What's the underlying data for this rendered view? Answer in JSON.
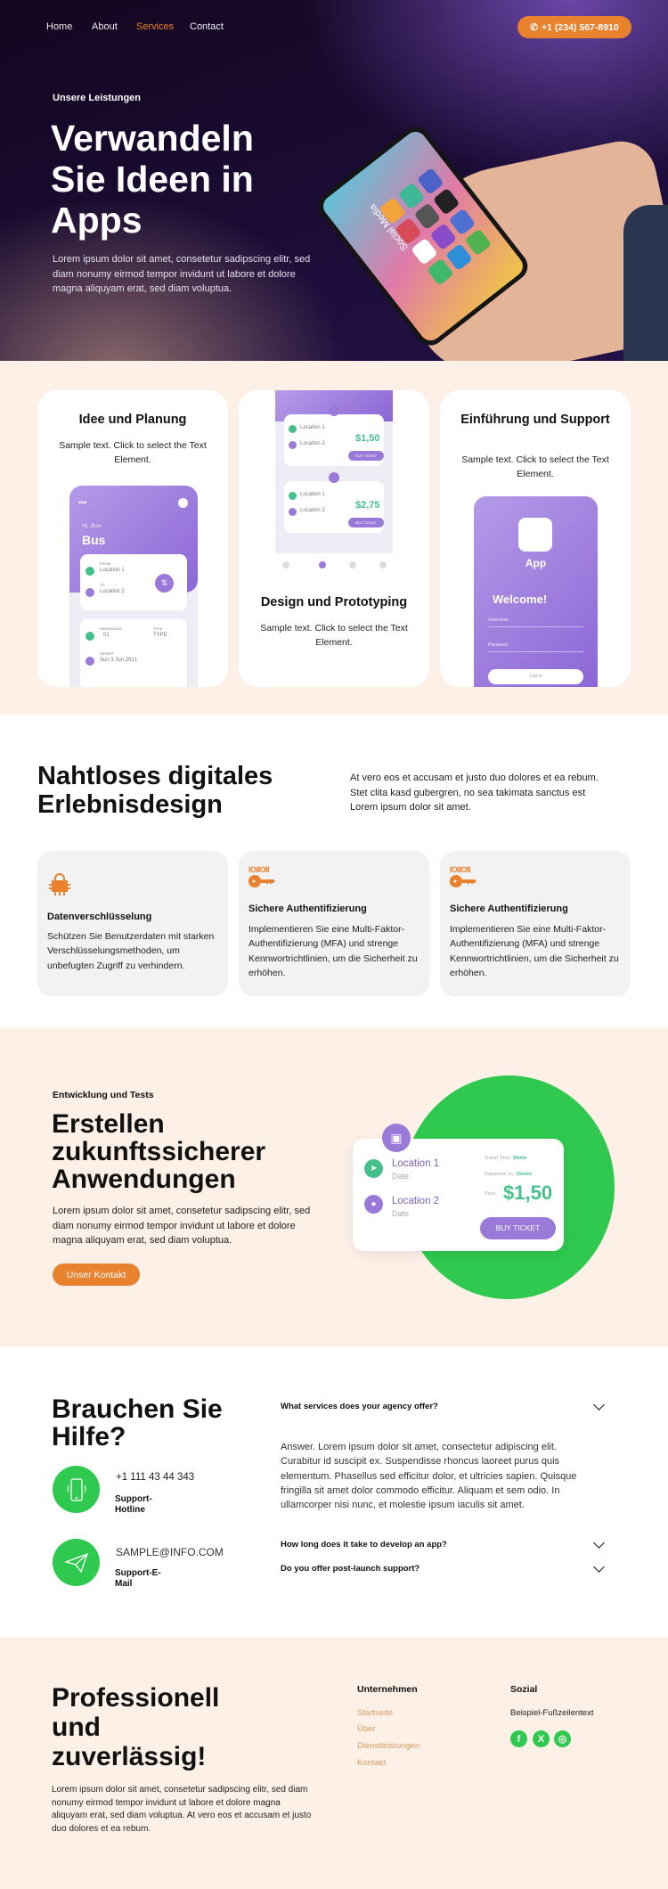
{
  "nav": {
    "items": [
      "Home",
      "About",
      "Services",
      "Contact"
    ],
    "active": "Services",
    "phone": "+1 (234) 567-8910"
  },
  "hero": {
    "kicker": "Unsere Leistungen",
    "title_lines": [
      "Verwandeln",
      "Sie Ideen in",
      "Apps"
    ],
    "text": "Lorem ipsum dolor sit amet, consetetur sadipscing elitr, sed diam nonumy eirmod tempor invidunt ut labore et dolore magna aliquyam erat, sed diam voluptua.",
    "phone_screen_label": "Social Media"
  },
  "process": {
    "cards": [
      {
        "title": "Idee und Planung",
        "text": "Sample text. Click to select the Text Element."
      },
      {
        "title": "Design und Prototyping",
        "text": "Sample text. Click to select the Text Element."
      },
      {
        "title": "Einführung und Support",
        "text": "Sample text. Click to select the Text Element."
      }
    ],
    "mock_bus": {
      "greeting": "Hi, Jhon",
      "title": "Bus",
      "from_label": "FROM",
      "from": "Location 1",
      "to_label": "TO",
      "to": "Location 2",
      "passenger_label": "PASSENGER",
      "passenger": "01",
      "type_label": "TYPE",
      "type": "TYPE",
      "depart_label": "DEPART",
      "depart": "Sun 3 Jun 2021"
    },
    "mock_tickets": [
      {
        "loc1": "Location 1",
        "loc2": "Location 2",
        "price": "$1,50",
        "button": "BUY TICKET"
      },
      {
        "loc1": "Location 1",
        "loc2": "Location 2",
        "price": "$2,75",
        "button": "BUY TICKET"
      }
    ],
    "mock_login": {
      "app": "App",
      "welcome": "Welcome!",
      "username": "Username",
      "password": "Password",
      "login": "Log In"
    }
  },
  "experience": {
    "title_lines": [
      "Nahtloses digitales",
      "Erlebnisdesign"
    ],
    "text": "At vero eos et accusam et justo duo dolores et ea rebum. Stet clita kasd gubergren, no sea takimata sanctus est Lorem ipsum dolor sit amet.",
    "features": [
      {
        "icon": "circuit-lock-icon",
        "title": "Datenverschlüsselung",
        "text": "Schützen Sie Benutzerdaten mit starken Verschlüsselungsmethoden, um unbefugten Zugriff zu verhindern."
      },
      {
        "icon": "binary-key-icon",
        "title": "Sichere Authentifizierung",
        "text": "Implementieren Sie eine Multi-Faktor-Authentifizierung (MFA) und strenge Kennwortrichtlinien, um die Sicherheit zu erhöhen."
      },
      {
        "icon": "binary-key-icon",
        "title": "Sichere Authentifizierung",
        "text": "Implementieren Sie eine Multi-Faktor-Authentifizierung (MFA) und strenge Kennwortrichtlinien, um die Sicherheit zu erhöhen."
      }
    ],
    "binary": "IOIIOII"
  },
  "dev": {
    "kicker": "Entwicklung und Tests",
    "title_lines": [
      "Erstellen",
      "zukunftssicherer",
      "Anwendungen"
    ],
    "text": "Lorem ipsum dolor sit amet, consetetur sadipscing elitr, sed diam nonumy eirmod tempor invidunt ut labore et dolore magna aliquyam erat, sed diam voluptua.",
    "button": "Unser Kontakt",
    "ticket": {
      "loc1": "Location 1",
      "loc2": "Location 2",
      "date": "Date",
      "travel_label": "Travel Time:",
      "travel": "30min",
      "departure_label": "Departure on:",
      "departure": "15mint",
      "price_label": "Price:",
      "price": "$1,50",
      "button": "BUY TICKET"
    },
    "colors": {
      "circle": "#2ec94e",
      "accent": "#9a7ad8"
    }
  },
  "help": {
    "title_lines": [
      "Brauchen Sie",
      "Hilfe?"
    ],
    "phone": "+1 111 43 44 343",
    "phone_label": "Support-Hotline",
    "email": "SAMPLE@INFO.COM",
    "email_label": "Support-E-Mail",
    "faq": [
      {
        "q": "What services does your agency offer?",
        "a": "Answer. Lorem ipsum dolor sit amet, consectetur adipiscing elit. Curabitur id suscipit ex. Suspendisse rhoncus laoreet purus quis elementum. Phasellus sed efficitur dolor, et ultricies sapien. Quisque fringilla sit amet dolor commodo efficitur. Aliquam et sem odio. In ullamcorper nisi nunc, et molestie ipsum iaculis sit amet.",
        "open": true
      },
      {
        "q": "How long does it take to develop an app?",
        "open": false
      },
      {
        "q": "Do you offer post-launch support?",
        "open": false
      }
    ]
  },
  "footer": {
    "title_lines": [
      "Professionell",
      "und",
      "zuverlässig!"
    ],
    "text": "Lorem ipsum dolor sit amet, consetetur sadipscing elitr, sed diam nonumy eirmod tempor invidunt ut labore et dolore magna aliquyam erat, sed diam voluptua. At vero eos et accusam et justo duo dolores et ea rebum.",
    "company_heading": "Unternehmen",
    "links": [
      "Startseite",
      "Über",
      "Dienstleistungen",
      "Kontakt"
    ],
    "social_heading": "Sozial",
    "social_text": "Beispiel-Fußzeilentext",
    "social_icons": [
      "facebook-icon",
      "x-icon",
      "instagram-icon"
    ]
  },
  "colors": {
    "orange": "#e8822e",
    "cream": "#fcf0e7",
    "green": "#2ec94e",
    "purple": "#9a7ad8",
    "link": "#d99b62"
  }
}
